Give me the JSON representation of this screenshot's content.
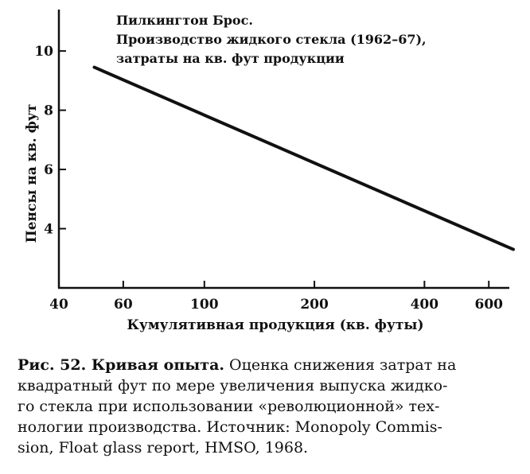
{
  "chart_data": {
    "type": "line",
    "x_scale": "log",
    "xlabel": "Кумулятивная продукция (кв. футы)",
    "ylabel": "Пенсы на кв. фут",
    "x_ticks": [
      40,
      60,
      100,
      200,
      400,
      600
    ],
    "y_ticks": [
      4,
      6,
      8,
      10
    ],
    "xlim": [
      40,
      700
    ],
    "ylim": [
      2,
      11.4
    ],
    "series": [
      {
        "x": [
          50,
          700
        ],
        "y": [
          9.45,
          3.3
        ]
      }
    ],
    "annotation_lines": [
      "Пилкингтон Брос.",
      "Производство жидкого стекла (1962–67),",
      "затраты на кв. фут продукции"
    ]
  },
  "caption": {
    "title": "Рис. 52. Кривая опыта.",
    "lines": [
      "Оценка снижения затрат на",
      "квадратный фут по мере увеличения выпуска жидко-",
      "го стекла при использовании «революционной» тех-",
      "нологии производства. Источник: Monopoly Commis-",
      "sion, Float glass report, HMSO, 1968."
    ]
  }
}
